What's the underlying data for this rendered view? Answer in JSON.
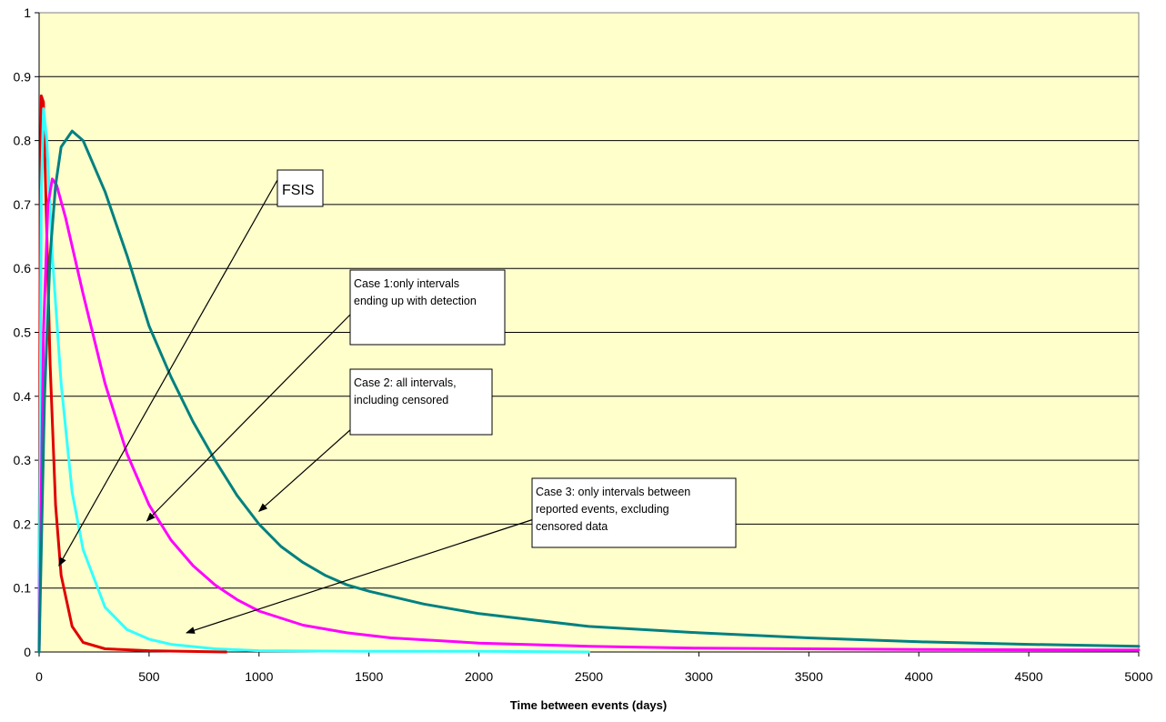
{
  "chart_data": {
    "type": "line",
    "title": "",
    "xlabel": "Time between events (days)",
    "ylabel": "",
    "xlim": [
      0,
      5000
    ],
    "ylim": [
      0,
      1
    ],
    "x_ticks": [
      "0",
      "500",
      "1000",
      "1500",
      "2000",
      "2500",
      "3000",
      "3500",
      "4000",
      "4500",
      "5000"
    ],
    "y_ticks": [
      "0",
      "0.1",
      "0.2",
      "0.3",
      "0.4",
      "0.5",
      "0.6",
      "0.7",
      "0.8",
      "0.9",
      "1"
    ],
    "grid": "horizontal",
    "plot_background": "#FFFFCC",
    "series": [
      {
        "color": "#E00000",
        "points": [
          [
            0,
            0
          ],
          [
            5,
            0.7
          ],
          [
            10,
            0.87
          ],
          [
            20,
            0.86
          ],
          [
            30,
            0.72
          ],
          [
            50,
            0.45
          ],
          [
            75,
            0.23
          ],
          [
            100,
            0.12
          ],
          [
            150,
            0.04
          ],
          [
            200,
            0.015
          ],
          [
            300,
            0.005
          ],
          [
            500,
            0.002
          ],
          [
            850,
            0
          ]
        ]
      },
      {
        "color": "#33FFFF",
        "points": [
          [
            0,
            0
          ],
          [
            10,
            0.72
          ],
          [
            20,
            0.85
          ],
          [
            35,
            0.8
          ],
          [
            60,
            0.62
          ],
          [
            100,
            0.42
          ],
          [
            150,
            0.25
          ],
          [
            200,
            0.16
          ],
          [
            300,
            0.07
          ],
          [
            400,
            0.035
          ],
          [
            500,
            0.02
          ],
          [
            600,
            0.012
          ],
          [
            800,
            0.005
          ],
          [
            1000,
            0.002
          ],
          [
            1500,
            0.001
          ],
          [
            2000,
            0.001
          ],
          [
            2500,
            0
          ]
        ]
      },
      {
        "color": "#FF00FF",
        "points": [
          [
            0,
            0
          ],
          [
            20,
            0.5
          ],
          [
            40,
            0.7
          ],
          [
            60,
            0.74
          ],
          [
            80,
            0.73
          ],
          [
            120,
            0.68
          ],
          [
            200,
            0.56
          ],
          [
            300,
            0.42
          ],
          [
            400,
            0.31
          ],
          [
            500,
            0.23
          ],
          [
            600,
            0.175
          ],
          [
            700,
            0.135
          ],
          [
            800,
            0.105
          ],
          [
            900,
            0.082
          ],
          [
            1000,
            0.064
          ],
          [
            1200,
            0.042
          ],
          [
            1400,
            0.03
          ],
          [
            1600,
            0.022
          ],
          [
            2000,
            0.014
          ],
          [
            2500,
            0.009
          ],
          [
            3000,
            0.006
          ],
          [
            3500,
            0.005
          ],
          [
            4000,
            0.004
          ],
          [
            5000,
            0.003
          ]
        ]
      },
      {
        "color": "#008080",
        "points": [
          [
            0,
            0
          ],
          [
            25,
            0.4
          ],
          [
            50,
            0.62
          ],
          [
            75,
            0.73
          ],
          [
            100,
            0.79
          ],
          [
            150,
            0.815
          ],
          [
            200,
            0.8
          ],
          [
            300,
            0.72
          ],
          [
            400,
            0.62
          ],
          [
            500,
            0.51
          ],
          [
            600,
            0.43
          ],
          [
            700,
            0.36
          ],
          [
            800,
            0.3
          ],
          [
            900,
            0.245
          ],
          [
            1000,
            0.2
          ],
          [
            1100,
            0.165
          ],
          [
            1200,
            0.14
          ],
          [
            1300,
            0.12
          ],
          [
            1400,
            0.105
          ],
          [
            1500,
            0.095
          ],
          [
            1750,
            0.075
          ],
          [
            2000,
            0.06
          ],
          [
            2250,
            0.05
          ],
          [
            2500,
            0.04
          ],
          [
            3000,
            0.03
          ],
          [
            3500,
            0.022
          ],
          [
            4000,
            0.016
          ],
          [
            4500,
            0.012
          ],
          [
            5000,
            0.009
          ]
        ]
      }
    ],
    "annotations": [
      {
        "text_lines": [
          "FSIS"
        ],
        "arrow_to": [
          90,
          0.135
        ]
      },
      {
        "text_lines": [
          "Case 1:only intervals",
          "ending up with detection"
        ],
        "arrow_to": [
          490,
          0.205
        ]
      },
      {
        "text_lines": [
          "Case 2: all intervals,",
          "including censored"
        ],
        "arrow_to": [
          1000,
          0.22
        ]
      },
      {
        "text_lines": [
          "Case 3: only intervals between",
          "reported events, excluding",
          "censored data"
        ],
        "arrow_to": [
          670,
          0.03
        ]
      }
    ]
  }
}
